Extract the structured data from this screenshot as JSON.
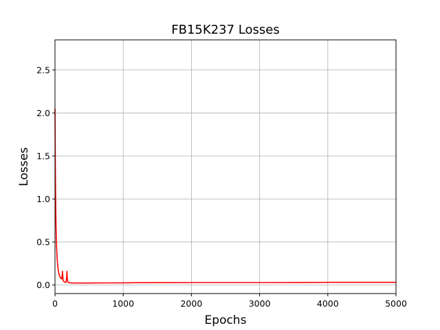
{
  "chart_data": {
    "type": "line",
    "title": "FB15K237 Losses",
    "xlabel": "Epochs",
    "ylabel": "Losses",
    "xlim": [
      0,
      5000
    ],
    "ylim": [
      -0.1,
      2.85
    ],
    "x_ticks": [
      "0",
      "1000",
      "2000",
      "3000",
      "4000",
      "5000"
    ],
    "y_ticks": [
      "0.0",
      "0.5",
      "1.0",
      "1.5",
      "2.0",
      "2.5"
    ],
    "grid": true,
    "series": [
      {
        "color": "#ff0000",
        "x": [
          0,
          5,
          10,
          15,
          20,
          30,
          40,
          50,
          60,
          70,
          80,
          90,
          100,
          110,
          120,
          130,
          140,
          150,
          160,
          170,
          175,
          180,
          190,
          200,
          220,
          250,
          300,
          400,
          500,
          600,
          800,
          1000,
          1200,
          1500,
          2000,
          2500,
          3000,
          3500,
          4000,
          4500,
          5000
        ],
        "y": [
          2.05,
          1.4,
          0.95,
          0.68,
          0.5,
          0.32,
          0.22,
          0.16,
          0.12,
          0.1,
          0.085,
          0.075,
          0.07,
          0.16,
          0.05,
          0.04,
          0.035,
          0.03,
          0.03,
          0.08,
          0.16,
          0.07,
          0.035,
          0.028,
          0.025,
          0.023,
          0.022,
          0.022,
          0.022,
          0.023,
          0.024,
          0.025,
          0.026,
          0.027,
          0.028,
          0.028,
          0.028,
          0.029,
          0.03,
          0.03,
          0.03
        ]
      }
    ]
  }
}
